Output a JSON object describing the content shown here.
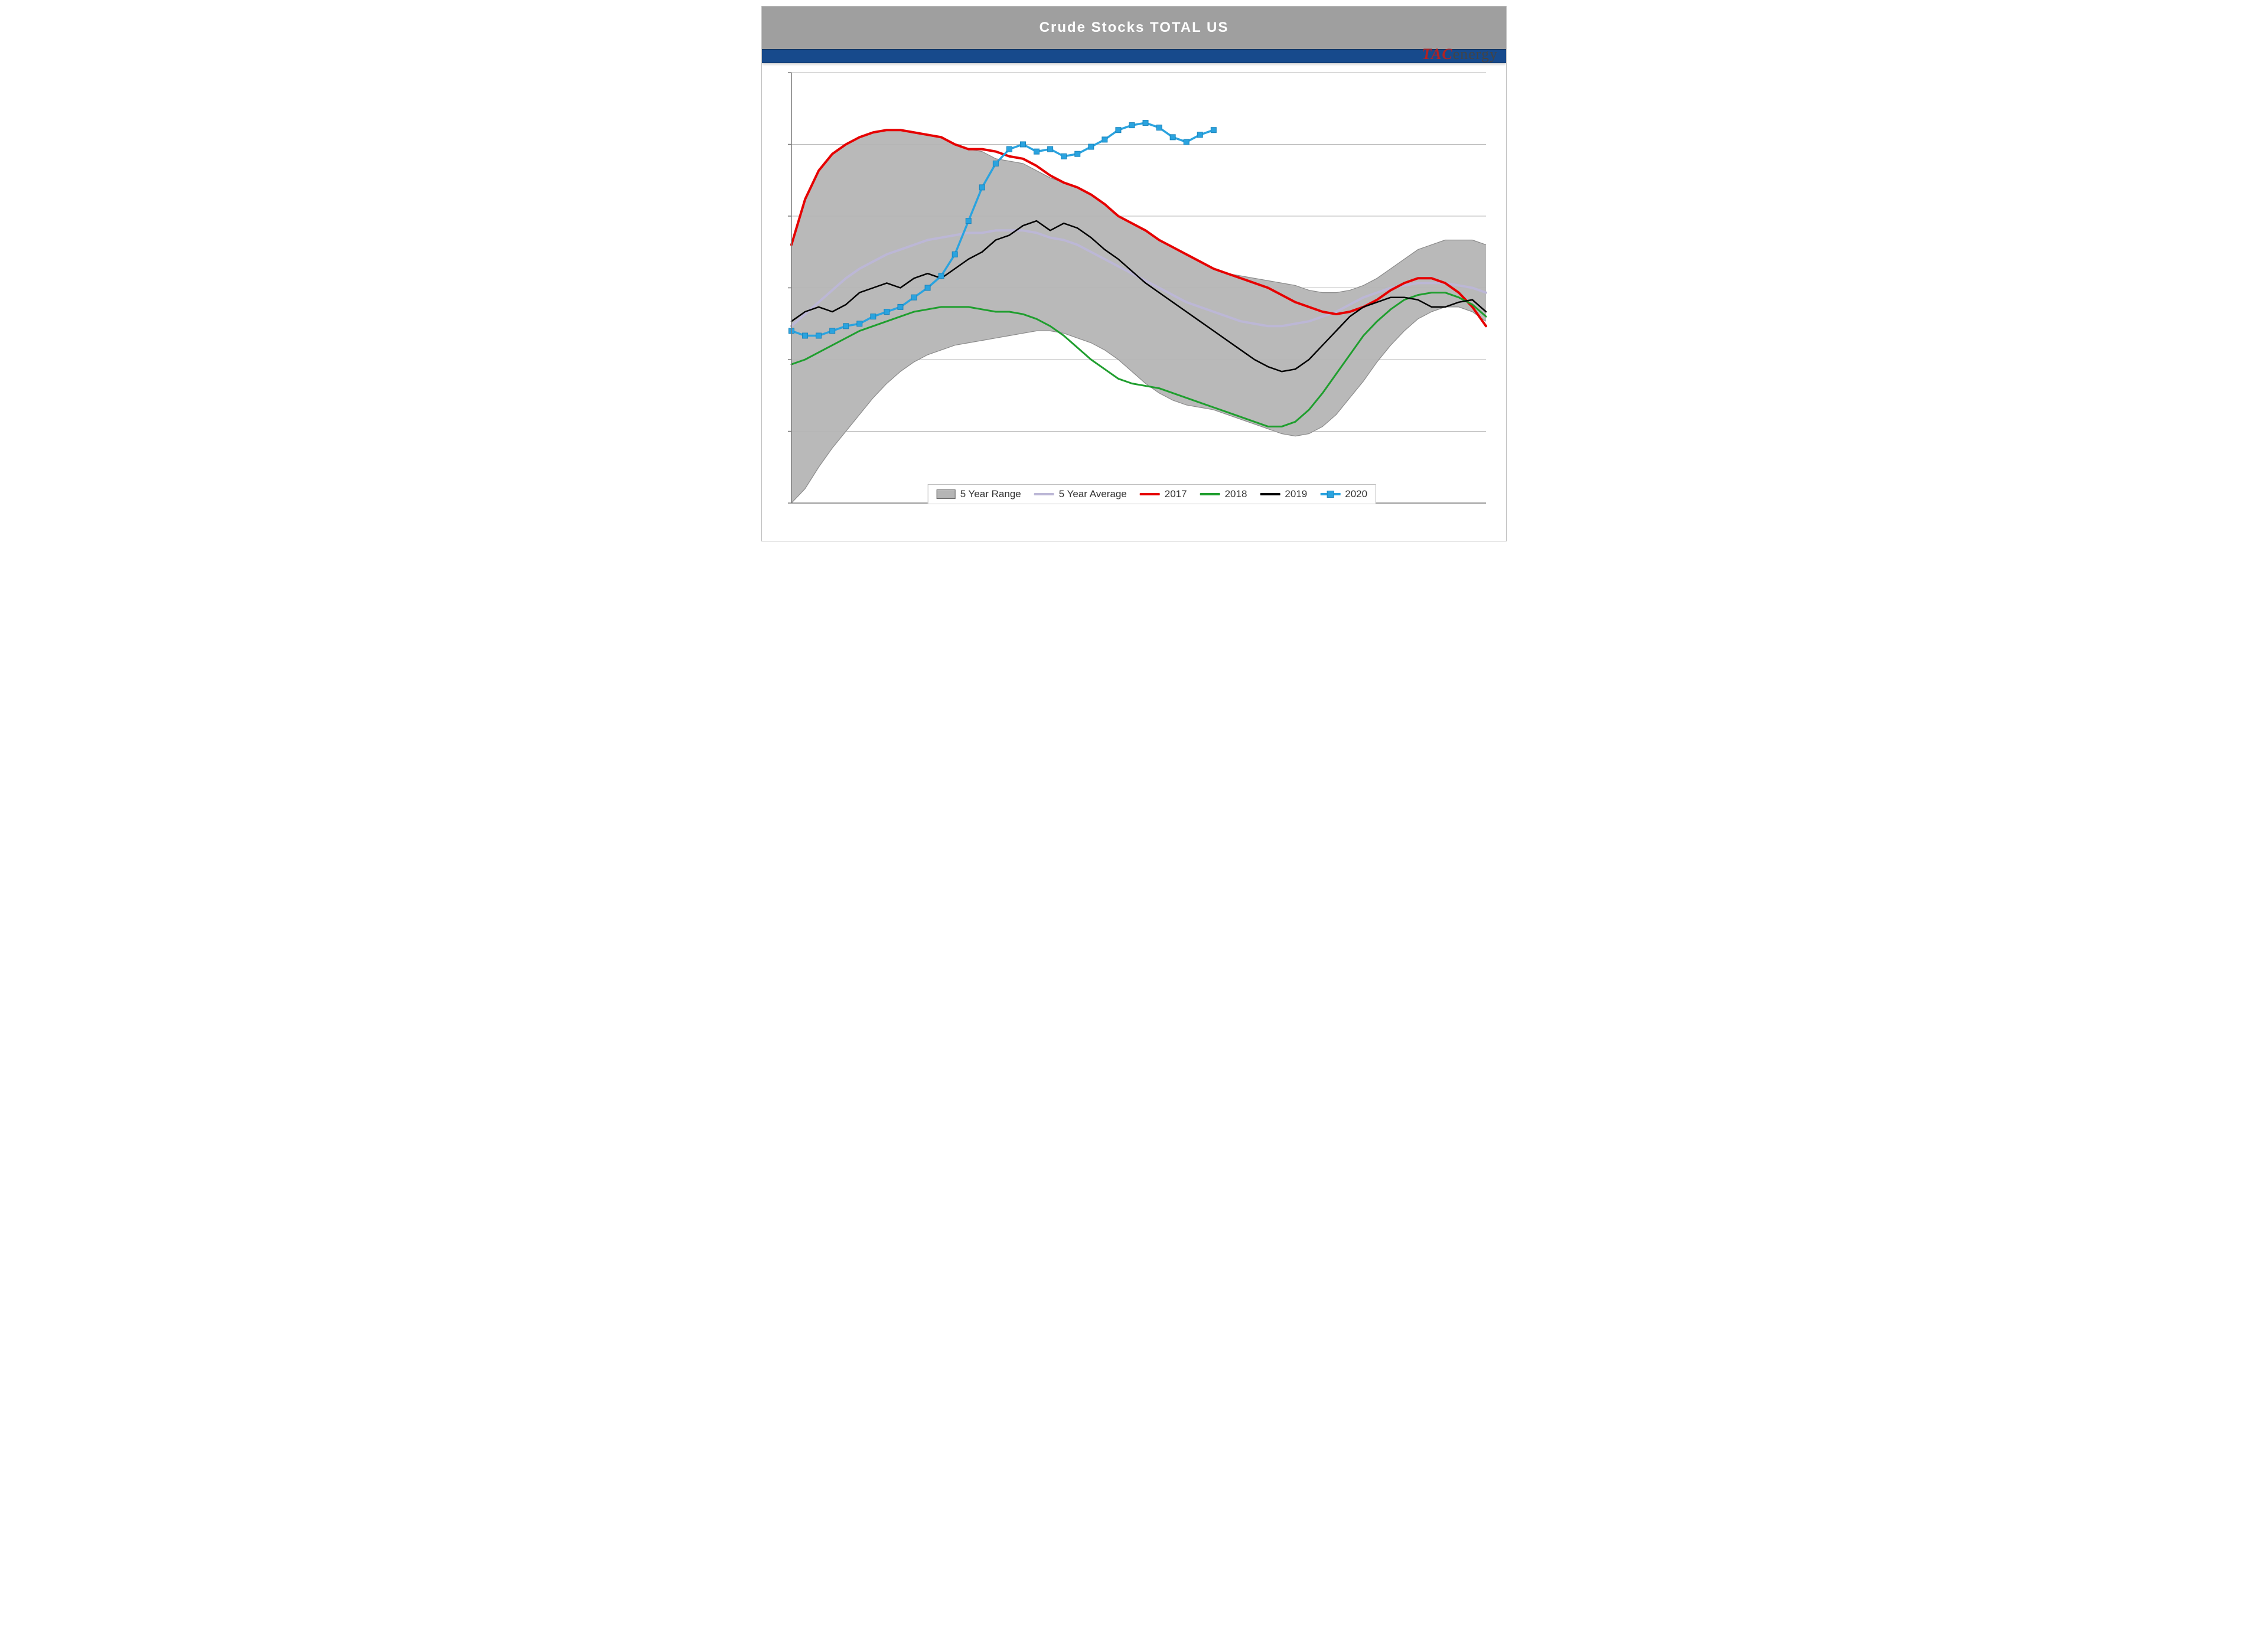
{
  "title": "Crude Stocks TOTAL US",
  "brand": {
    "left": "TAC",
    "right": "energy"
  },
  "chart": {
    "type": "line",
    "x_count": 52,
    "ylim": [
      380,
      560
    ],
    "gridlines_y": [
      560,
      530,
      500,
      470,
      440,
      410,
      380
    ],
    "background_color": "#ffffff",
    "grid_color": "#b5b5b5",
    "axis_color": "#7a7a7a",
    "range": {
      "label": "5 Year Range",
      "fill": "#b5b5b5",
      "stroke": "#8a8a8a",
      "upper": [
        488,
        507,
        519,
        526,
        530,
        533,
        535,
        536,
        536,
        535,
        534,
        533,
        530,
        528,
        527,
        524,
        523,
        522,
        519,
        516,
        514,
        512,
        509,
        505,
        500,
        497,
        494,
        490,
        487,
        484,
        481,
        478,
        476,
        475,
        474,
        473,
        472,
        471,
        469,
        468,
        468,
        469,
        471,
        474,
        478,
        482,
        486,
        488,
        490,
        490,
        490,
        488
      ],
      "lower": [
        380,
        386,
        395,
        403,
        410,
        417,
        424,
        430,
        435,
        439,
        442,
        444,
        446,
        447,
        448,
        449,
        450,
        451,
        452,
        452,
        451,
        449,
        447,
        444,
        440,
        435,
        430,
        426,
        423,
        421,
        420,
        419,
        417,
        415,
        413,
        411,
        409,
        408,
        409,
        412,
        417,
        424,
        431,
        439,
        446,
        452,
        457,
        460,
        462,
        462,
        460,
        456
      ]
    },
    "series": [
      {
        "key": "avg",
        "label": "5 Year Average",
        "color": "#bcb7d6",
        "width": 4,
        "data": [
          454,
          459,
          464,
          469,
          474,
          478,
          481,
          484,
          486,
          488,
          490,
          491,
          492,
          493,
          493,
          494,
          494,
          494,
          493,
          491,
          490,
          488,
          485,
          482,
          479,
          476,
          473,
          470,
          467,
          464,
          462,
          460,
          458,
          456,
          455,
          454,
          454,
          455,
          456,
          458,
          460,
          463,
          466,
          468,
          470,
          471,
          472,
          472,
          472,
          471,
          470,
          468
        ]
      },
      {
        "key": "y2017",
        "label": "2017",
        "color": "#e60000",
        "width": 4,
        "data": [
          488,
          507,
          519,
          526,
          530,
          533,
          535,
          536,
          536,
          535,
          534,
          533,
          530,
          528,
          528,
          527,
          525,
          524,
          521,
          517,
          514,
          512,
          509,
          505,
          500,
          497,
          494,
          490,
          487,
          484,
          481,
          478,
          476,
          474,
          472,
          470,
          467,
          464,
          462,
          460,
          459,
          460,
          462,
          465,
          469,
          472,
          474,
          474,
          472,
          468,
          462,
          454
        ]
      },
      {
        "key": "y2018",
        "label": "2018",
        "color": "#1f9e2e",
        "width": 3,
        "data": [
          438,
          440,
          443,
          446,
          449,
          452,
          454,
          456,
          458,
          460,
          461,
          462,
          462,
          462,
          461,
          460,
          460,
          459,
          457,
          454,
          450,
          445,
          440,
          436,
          432,
          430,
          429,
          428,
          426,
          424,
          422,
          420,
          418,
          416,
          414,
          412,
          412,
          414,
          419,
          426,
          434,
          442,
          450,
          456,
          461,
          465,
          467,
          468,
          468,
          466,
          463,
          458
        ]
      },
      {
        "key": "y2019",
        "label": "2019",
        "color": "#000000",
        "width": 2.5,
        "data": [
          456,
          460,
          462,
          460,
          463,
          468,
          470,
          472,
          470,
          474,
          476,
          474,
          478,
          482,
          485,
          490,
          492,
          496,
          498,
          494,
          497,
          495,
          491,
          486,
          482,
          477,
          472,
          468,
          464,
          460,
          456,
          452,
          448,
          444,
          440,
          437,
          435,
          436,
          440,
          446,
          452,
          458,
          462,
          464,
          466,
          466,
          465,
          462,
          462,
          464,
          465,
          460
        ]
      },
      {
        "key": "y2020",
        "label": "2020",
        "color": "#2aa3df",
        "width": 3.5,
        "marker": "square",
        "marker_size": 9,
        "marker_fill": "#2aa3df",
        "marker_stroke": "#1a84bb",
        "data": [
          452,
          450,
          450,
          452,
          454,
          455,
          458,
          460,
          462,
          466,
          470,
          475,
          484,
          498,
          512,
          522,
          528,
          530,
          527,
          528,
          525,
          526,
          529,
          532,
          536,
          538,
          539,
          537,
          533,
          531,
          534,
          536
        ]
      }
    ],
    "legend_order": [
      "range",
      "avg",
      "y2017",
      "y2018",
      "y2019",
      "y2020"
    ]
  }
}
